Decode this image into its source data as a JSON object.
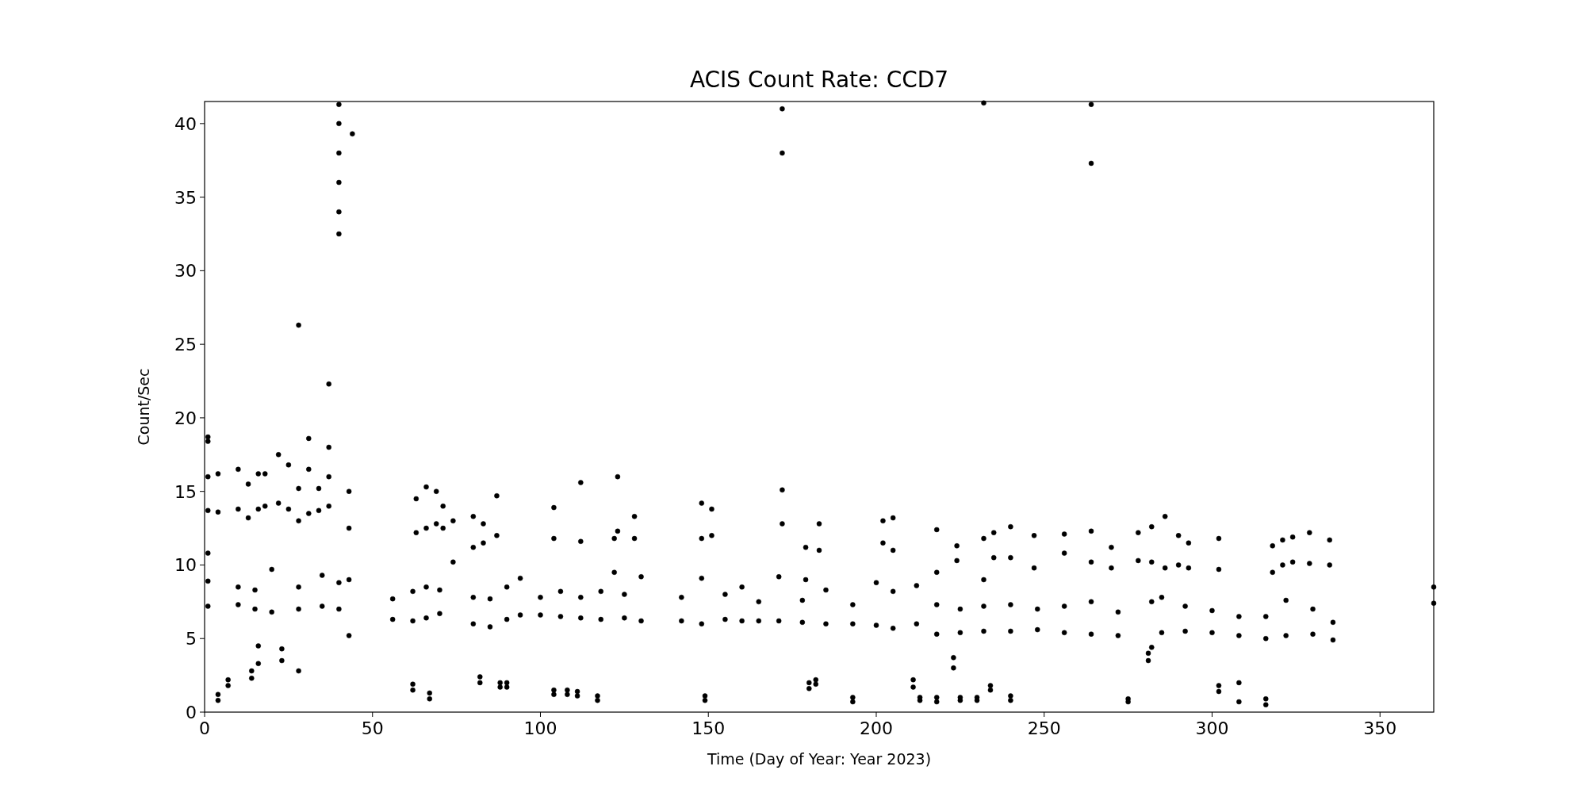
{
  "chart_data": {
    "type": "scatter",
    "title": "ACIS Count Rate: CCD7",
    "xlabel": "Time (Day of Year: Year 2023)",
    "ylabel": "Count/Sec",
    "xlim": [
      0,
      366
    ],
    "ylim": [
      0,
      41.5
    ],
    "xticks": [
      0,
      50,
      100,
      150,
      200,
      250,
      300,
      350
    ],
    "yticks": [
      0,
      5,
      10,
      15,
      20,
      25,
      30,
      35,
      40
    ],
    "grid": false,
    "marker": "circle",
    "series": [
      {
        "color": "#000000",
        "x": [
          1,
          1,
          1,
          1,
          1,
          1,
          1,
          4,
          4,
          4,
          4,
          7,
          7,
          10,
          10,
          10,
          10,
          13,
          13,
          14,
          14,
          15,
          15,
          16,
          16,
          16,
          16,
          18,
          18,
          20,
          20,
          22,
          22,
          23,
          23,
          25,
          25,
          28,
          28,
          28,
          28,
          28,
          28,
          31,
          31,
          31,
          34,
          34,
          35,
          35,
          37,
          37,
          37,
          37,
          40,
          40,
          40,
          40,
          40,
          40,
          40,
          40,
          43,
          43,
          43,
          43,
          44,
          56,
          56,
          62,
          62,
          62,
          62,
          63,
          63,
          66,
          66,
          66,
          66,
          67,
          67,
          69,
          69,
          70,
          70,
          71,
          71,
          74,
          74,
          80,
          80,
          80,
          80,
          82,
          82,
          83,
          83,
          85,
          85,
          87,
          87,
          88,
          88,
          90,
          90,
          90,
          90,
          94,
          94,
          100,
          100,
          104,
          104,
          104,
          104,
          106,
          106,
          108,
          108,
          111,
          111,
          112,
          112,
          112,
          112,
          117,
          117,
          118,
          118,
          122,
          122,
          123,
          123,
          125,
          125,
          128,
          128,
          130,
          130,
          142,
          142,
          148,
          148,
          148,
          148,
          149,
          149,
          151,
          151,
          155,
          155,
          160,
          160,
          165,
          165,
          171,
          171,
          172,
          172,
          172,
          172,
          178,
          178,
          179,
          179,
          180,
          180,
          182,
          182,
          183,
          183,
          185,
          185,
          193,
          193,
          193,
          193,
          200,
          200,
          202,
          202,
          205,
          205,
          205,
          205,
          211,
          211,
          212,
          212,
          213,
          213,
          218,
          218,
          218,
          218,
          218,
          218,
          223,
          223,
          224,
          224,
          225,
          225,
          225,
          225,
          230,
          230,
          232,
          232,
          232,
          232,
          232,
          234,
          234,
          235,
          235,
          240,
          240,
          240,
          240,
          240,
          240,
          247,
          247,
          248,
          248,
          256,
          256,
          256,
          256,
          264,
          264,
          264,
          264,
          264,
          264,
          270,
          270,
          272,
          272,
          275,
          275,
          278,
          278,
          281,
          281,
          282,
          282,
          282,
          282,
          285,
          285,
          286,
          286,
          290,
          290,
          292,
          292,
          293,
          293,
          300,
          300,
          302,
          302,
          302,
          302,
          308,
          308,
          308,
          308,
          316,
          316,
          316,
          316,
          318,
          318,
          321,
          321,
          322,
          322,
          324,
          324,
          329,
          329,
          330,
          330,
          335,
          335,
          336,
          336,
          366,
          366
        ],
        "values": [
          13.7,
          16,
          18.7,
          18.4,
          7.2,
          8.9,
          10.8,
          13.6,
          16.2,
          0.8,
          1.2,
          1.8,
          2.2,
          13.8,
          16.5,
          7.3,
          8.5,
          13.2,
          15.5,
          2.3,
          2.8,
          7,
          8.3,
          13.8,
          16.2,
          3.3,
          4.5,
          14,
          16.2,
          6.8,
          9.7,
          14.2,
          17.5,
          3.5,
          4.3,
          13.8,
          16.8,
          13,
          15.2,
          26.3,
          2.8,
          7,
          8.5,
          13.5,
          16.5,
          18.6,
          13.7,
          15.2,
          7.2,
          9.3,
          14,
          16,
          18,
          22.3,
          32.5,
          34,
          36,
          38,
          40,
          41.3,
          7,
          8.8,
          12.5,
          15,
          5.2,
          9,
          39.3,
          6.3,
          7.7,
          1.5,
          1.9,
          6.2,
          8.2,
          12.2,
          14.5,
          12.5,
          15.3,
          6.4,
          8.5,
          0.9,
          1.3,
          12.8,
          15,
          6.7,
          8.3,
          12.5,
          14,
          10.2,
          13,
          11.2,
          13.3,
          6,
          7.8,
          2,
          2.4,
          11.5,
          12.8,
          5.8,
          7.7,
          12,
          14.7,
          1.7,
          2,
          1.7,
          2,
          6.3,
          8.5,
          6.6,
          9.1,
          6.6,
          7.8,
          11.8,
          13.9,
          1.2,
          1.5,
          6.5,
          8.2,
          1.2,
          1.5,
          1.1,
          1.4,
          11.6,
          15.6,
          6.4,
          7.8,
          0.8,
          1.1,
          6.3,
          8.2,
          9.5,
          11.8,
          12.3,
          16,
          6.4,
          8,
          11.8,
          13.3,
          6.2,
          9.2,
          6.2,
          7.8,
          11.8,
          14.2,
          6,
          9.1,
          0.8,
          1.1,
          12,
          13.8,
          6.3,
          8,
          6.2,
          8.5,
          6.2,
          7.5,
          6.2,
          9.2,
          38,
          41,
          12.8,
          15.1,
          6.1,
          7.6,
          9,
          11.2,
          1.6,
          2,
          1.9,
          2.2,
          11,
          12.8,
          6,
          8.3,
          6,
          7.3,
          0.7,
          1,
          5.9,
          8.8,
          11.5,
          13,
          11,
          13.2,
          5.7,
          8.2,
          1.7,
          2.2,
          6,
          8.6,
          0.8,
          1,
          9.5,
          12.4,
          5.3,
          7.3,
          0.7,
          1,
          3,
          3.7,
          10.3,
          11.3,
          5.4,
          7,
          0.8,
          1,
          0.8,
          1,
          9,
          11.8,
          41.4,
          5.5,
          7.2,
          1.5,
          1.8,
          10.5,
          12.2,
          10.5,
          12.6,
          5.5,
          7.3,
          0.8,
          1.1,
          9.8,
          12,
          5.6,
          7,
          10.8,
          12.1,
          5.4,
          7.2,
          10.2,
          12.3,
          37.3,
          41.3,
          5.3,
          7.5,
          9.8,
          11.2,
          5.2,
          6.8,
          0.7,
          0.9,
          10.3,
          12.2,
          3.5,
          4,
          10.2,
          12.6,
          4.4,
          7.5,
          5.4,
          7.8,
          9.8,
          13.3,
          10,
          12,
          5.5,
          7.2,
          9.8,
          11.5,
          5.4,
          6.9,
          9.7,
          11.8,
          1.4,
          1.8,
          5.2,
          6.5,
          0.7,
          2,
          5,
          6.5,
          0.5,
          0.9,
          9.5,
          11.3,
          10,
          11.7,
          5.2,
          7.6,
          10.2,
          11.9,
          10.1,
          12.2,
          5.3,
          7,
          10,
          11.7,
          4.9,
          6.1,
          7.4,
          8.5
        ]
      }
    ]
  }
}
